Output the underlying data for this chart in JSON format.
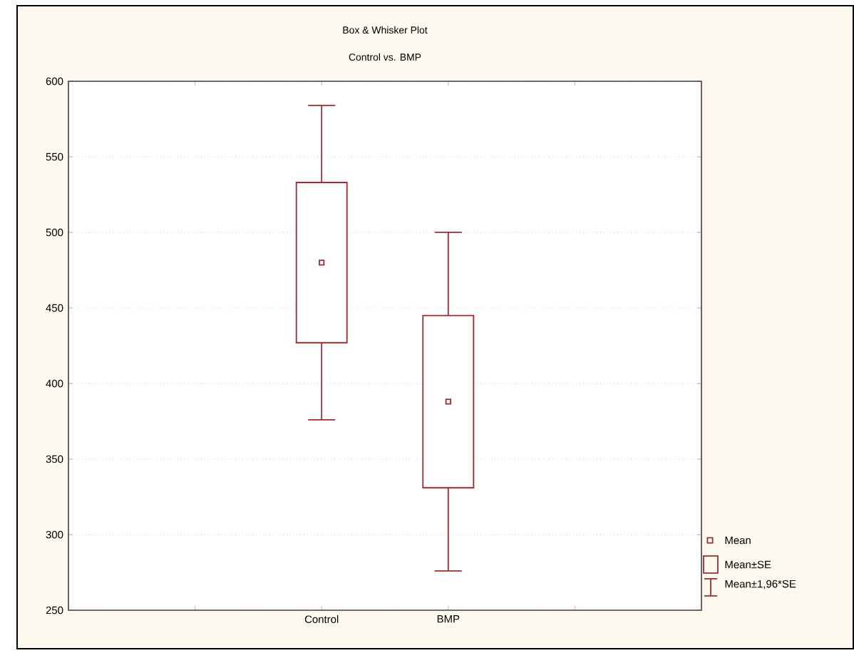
{
  "chart_data": {
    "type": "box",
    "title": "Box & Whisker Plot",
    "subtitle": "Control  vs. BMP",
    "categories": [
      "Control",
      "BMP"
    ],
    "series": [
      {
        "color": "#9b2d30",
        "boxes": [
          {
            "low": 376,
            "q1": 427,
            "mean": 480,
            "q3": 533,
            "high": 584
          },
          {
            "low": 276,
            "q1": 331,
            "mean": 388,
            "q3": 445,
            "high": 500
          }
        ]
      }
    ],
    "ylim": [
      250,
      600
    ],
    "yticks": [
      250,
      300,
      350,
      400,
      450,
      500,
      550,
      600
    ],
    "grid": "y",
    "marker": "square",
    "annotations": [
      "Mean",
      "Mean±SE",
      "Mean±1,96*SE"
    ]
  }
}
